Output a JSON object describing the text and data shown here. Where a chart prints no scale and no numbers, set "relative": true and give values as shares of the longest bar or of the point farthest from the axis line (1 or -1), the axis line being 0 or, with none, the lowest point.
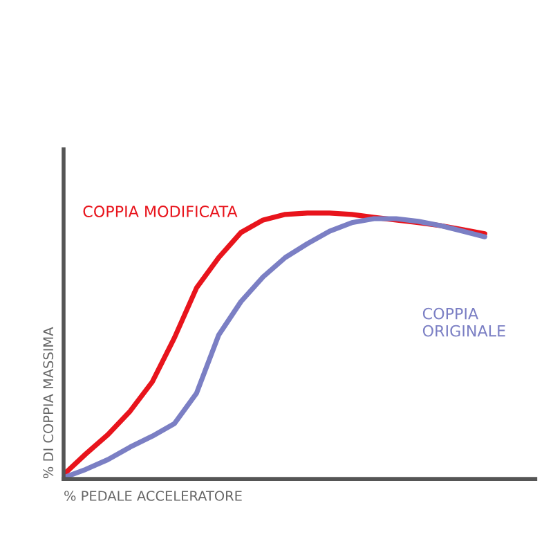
{
  "chart_data": {
    "type": "line",
    "relative": true,
    "xlabel": "% PEDALE ACCELERATORE",
    "ylabel": "% DI COPPIA MASSIMA",
    "legend": false,
    "marker": "none",
    "line_style": "solid",
    "categories": [
      null,
      null,
      null,
      null,
      null,
      null,
      null,
      null,
      null,
      null,
      null,
      null,
      null,
      null,
      null,
      null,
      null,
      null,
      null,
      null
    ],
    "series": [
      {
        "name": "COPPIA MODIFICATA",
        "color": "#e8141c",
        "values": [
          0.016,
          0.094,
          0.167,
          0.255,
          0.365,
          0.531,
          0.719,
          0.833,
          0.927,
          0.974,
          0.995,
          1,
          1,
          0.995,
          0.984,
          0.974,
          0.964,
          0.953,
          0.938,
          0.922
        ]
      },
      {
        "name": "COPPIA\nORIGINALE",
        "color": "#7b7fc4",
        "values": [
          0.005,
          0.036,
          0.073,
          0.12,
          0.161,
          0.208,
          0.323,
          0.542,
          0.667,
          0.76,
          0.833,
          0.885,
          0.932,
          0.964,
          0.979,
          0.979,
          0.969,
          0.953,
          0.932,
          0.911
        ]
      }
    ]
  }
}
